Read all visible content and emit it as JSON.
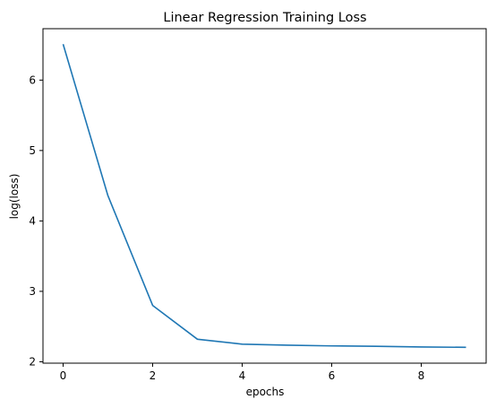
{
  "chart_data": {
    "type": "line",
    "title": "Linear Regression Training Loss",
    "xlabel": "epochs",
    "ylabel": "log(loss)",
    "xlim": [
      -0.45,
      9.45
    ],
    "ylim": [
      1.98,
      6.73
    ],
    "xticks": [
      0,
      2,
      4,
      6,
      8
    ],
    "yticks": [
      2,
      3,
      4,
      5,
      6
    ],
    "grid": false,
    "series": [
      {
        "color": "#1f77b4",
        "x": [
          0,
          1,
          2,
          3,
          4,
          5,
          6,
          7,
          8,
          9
        ],
        "y": [
          6.51,
          4.36,
          2.8,
          2.32,
          2.25,
          2.235,
          2.225,
          2.22,
          2.21,
          2.205
        ]
      }
    ]
  }
}
